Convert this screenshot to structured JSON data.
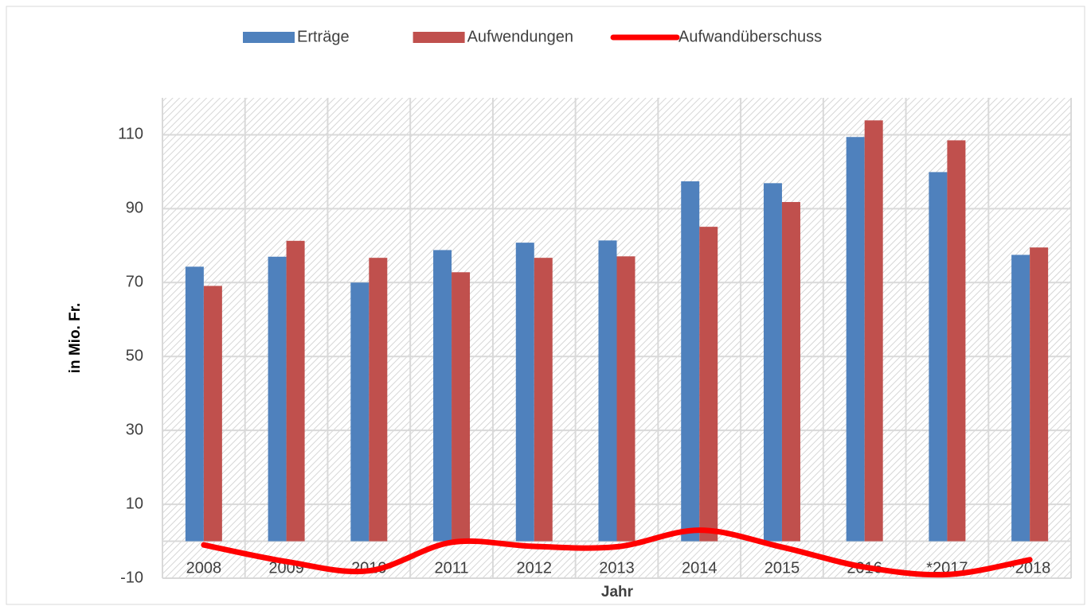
{
  "chart_data": {
    "type": "bar",
    "x_label": "Jahr",
    "y_label": "in Mio. Fr.",
    "categories": [
      "2008",
      "2009",
      "2010",
      "2011",
      "2012",
      "2013",
      "2014",
      "2015",
      "2016",
      "*2017",
      "*2018"
    ],
    "series": [
      {
        "name": "Erträge",
        "color": "#4f81bd",
        "type": "bar",
        "values": [
          74.3,
          77,
          70,
          78.8,
          80.8,
          81.4,
          97.4,
          96.9,
          109.4,
          99.9,
          77.5
        ]
      },
      {
        "name": "Aufwendungen",
        "color": "#c0504d",
        "type": "bar",
        "values": [
          69.1,
          81.3,
          76.7,
          72.8,
          76.7,
          77.1,
          85.1,
          91.8,
          113.9,
          108.5,
          79.5
        ]
      },
      {
        "name": "Aufwandüberschuss",
        "color": "#ff0000",
        "type": "line",
        "values": [
          -1,
          -5.5,
          -8,
          -0.3,
          -1.4,
          -1.5,
          3,
          -1.6,
          -7,
          -9,
          -5
        ]
      }
    ],
    "ylim": [
      -10,
      120
    ],
    "yticks": [
      -10,
      10,
      30,
      50,
      70,
      90,
      110
    ],
    "grid": true,
    "legend": "top"
  }
}
